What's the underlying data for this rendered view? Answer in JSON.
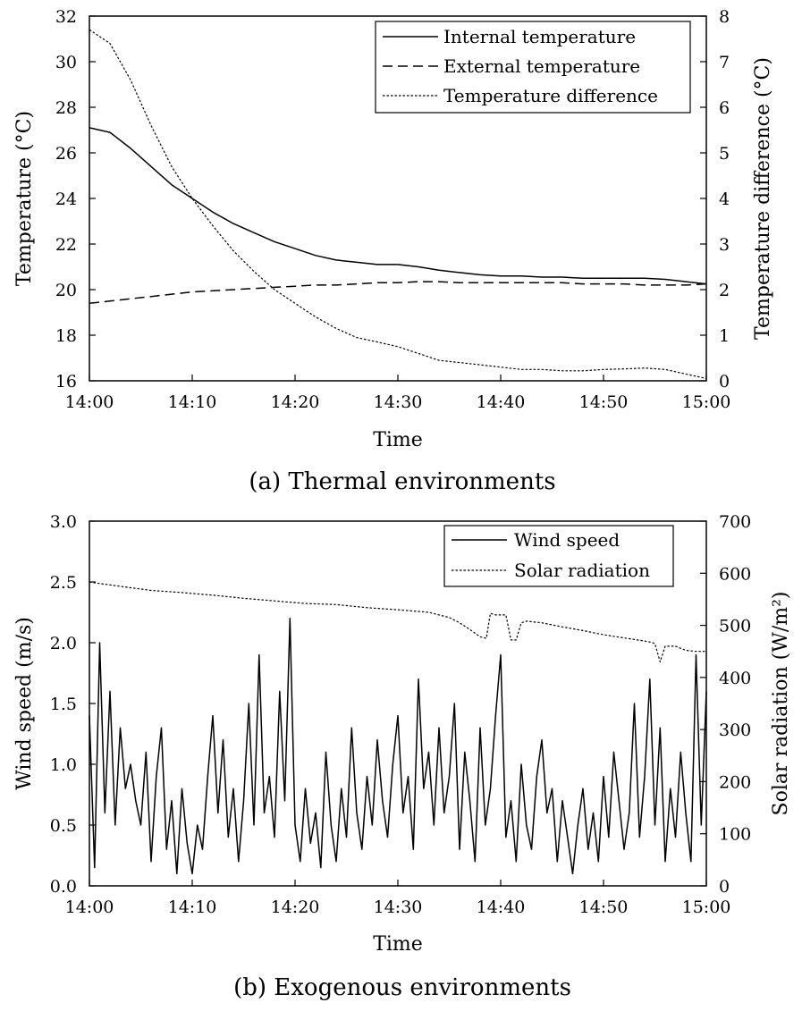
{
  "chart_data": [
    {
      "type": "line",
      "caption": "(a) Thermal environments",
      "xlabel": "Time",
      "ylabel": "Temperature (°C)",
      "y2label": "Temperature difference (°C)",
      "x_ticks": [
        "14:00",
        "14:10",
        "14:20",
        "14:30",
        "14:40",
        "14:50",
        "15:00"
      ],
      "xlim": [
        0,
        60
      ],
      "ylim": [
        16,
        32
      ],
      "y_ticks": [
        16,
        18,
        20,
        22,
        24,
        26,
        28,
        30,
        32
      ],
      "y2lim": [
        0,
        8
      ],
      "y2_ticks": [
        0,
        1,
        2,
        3,
        4,
        5,
        6,
        7,
        8
      ],
      "grid": false,
      "legend_position": "top-right",
      "x": [
        0,
        2,
        4,
        6,
        8,
        10,
        12,
        14,
        16,
        18,
        20,
        22,
        24,
        26,
        28,
        30,
        32,
        34,
        36,
        38,
        40,
        42,
        44,
        46,
        48,
        50,
        52,
        54,
        56,
        58,
        60
      ],
      "series": [
        {
          "name": "Internal temperature",
          "axis": "left",
          "style": "solid",
          "values": [
            27.1,
            26.9,
            26.2,
            25.4,
            24.6,
            24.0,
            23.4,
            22.9,
            22.5,
            22.1,
            21.8,
            21.5,
            21.3,
            21.2,
            21.1,
            21.1,
            21.0,
            20.85,
            20.75,
            20.65,
            20.6,
            20.6,
            20.55,
            20.55,
            20.5,
            20.5,
            20.5,
            20.5,
            20.45,
            20.35,
            20.25
          ]
        },
        {
          "name": "External temperature",
          "axis": "left",
          "style": "dashed",
          "values": [
            19.4,
            19.5,
            19.6,
            19.7,
            19.8,
            19.9,
            19.95,
            20.0,
            20.05,
            20.1,
            20.15,
            20.2,
            20.2,
            20.25,
            20.3,
            20.3,
            20.35,
            20.35,
            20.3,
            20.3,
            20.3,
            20.3,
            20.3,
            20.3,
            20.25,
            20.25,
            20.25,
            20.2,
            20.2,
            20.2,
            20.25
          ]
        },
        {
          "name": "Temperature difference",
          "axis": "right",
          "style": "dotted",
          "values": [
            7.7,
            7.4,
            6.6,
            5.6,
            4.7,
            4.0,
            3.4,
            2.85,
            2.4,
            2.0,
            1.7,
            1.4,
            1.15,
            0.95,
            0.85,
            0.75,
            0.6,
            0.45,
            0.4,
            0.35,
            0.3,
            0.25,
            0.25,
            0.22,
            0.22,
            0.25,
            0.26,
            0.28,
            0.25,
            0.15,
            0.05
          ]
        }
      ]
    },
    {
      "type": "line",
      "caption": "(b) Exogenous environments",
      "xlabel": "Time",
      "ylabel": "Wind speed (m/s)",
      "y2label": "Solar radiation (W/m²)",
      "x_ticks": [
        "14:00",
        "14:10",
        "14:20",
        "14:30",
        "14:40",
        "14:50",
        "15:00"
      ],
      "xlim": [
        0,
        60
      ],
      "ylim": [
        0,
        3
      ],
      "y_ticks": [
        "0.0",
        "0.5",
        "1.0",
        "1.5",
        "2.0",
        "2.5",
        "3.0"
      ],
      "y2lim": [
        0,
        700
      ],
      "y2_ticks": [
        0,
        100,
        200,
        300,
        400,
        500,
        600,
        700
      ],
      "grid": false,
      "legend_position": "top-right",
      "series": [
        {
          "name": "Wind speed",
          "axis": "left",
          "style": "solid",
          "x": [
            0,
            0.5,
            1,
            1.5,
            2,
            2.5,
            3,
            3.5,
            4,
            4.5,
            5,
            5.5,
            6,
            6.5,
            7,
            7.5,
            8,
            8.5,
            9,
            9.5,
            10,
            10.5,
            11,
            11.5,
            12,
            12.5,
            13,
            13.5,
            14,
            14.5,
            15,
            15.5,
            16,
            16.5,
            17,
            17.5,
            18,
            18.5,
            19,
            19.5,
            20,
            20.5,
            21,
            21.5,
            22,
            22.5,
            23,
            23.5,
            24,
            24.5,
            25,
            25.5,
            26,
            26.5,
            27,
            27.5,
            28,
            28.5,
            29,
            29.5,
            30,
            30.5,
            31,
            31.5,
            32,
            32.5,
            33,
            33.5,
            34,
            34.5,
            35,
            35.5,
            36,
            36.5,
            37,
            37.5,
            38,
            38.5,
            39,
            39.5,
            40,
            40.5,
            41,
            41.5,
            42,
            42.5,
            43,
            43.5,
            44,
            44.5,
            45,
            45.5,
            46,
            46.5,
            47,
            47.5,
            48,
            48.5,
            49,
            49.5,
            50,
            50.5,
            51,
            51.5,
            52,
            52.5,
            53,
            53.5,
            54,
            54.5,
            55,
            55.5,
            56,
            56.5,
            57,
            57.5,
            58,
            58.5,
            59,
            59.5,
            60
          ],
          "values": [
            1.4,
            0.15,
            2.0,
            0.6,
            1.6,
            0.5,
            1.3,
            0.8,
            1.0,
            0.7,
            0.5,
            1.1,
            0.2,
            0.9,
            1.3,
            0.3,
            0.7,
            0.1,
            0.8,
            0.35,
            0.1,
            0.5,
            0.3,
            0.9,
            1.4,
            0.6,
            1.2,
            0.4,
            0.8,
            0.2,
            0.7,
            1.5,
            0.5,
            1.9,
            0.6,
            0.9,
            0.4,
            1.6,
            0.7,
            2.2,
            0.5,
            0.2,
            0.8,
            0.35,
            0.6,
            0.15,
            1.1,
            0.5,
            0.2,
            0.8,
            0.4,
            1.3,
            0.6,
            0.3,
            0.9,
            0.5,
            1.2,
            0.7,
            0.4,
            1.0,
            1.4,
            0.6,
            0.9,
            0.3,
            1.7,
            0.8,
            1.1,
            0.5,
            1.3,
            0.6,
            0.9,
            1.5,
            0.3,
            1.1,
            0.7,
            0.2,
            1.3,
            0.5,
            0.8,
            1.4,
            1.9,
            0.4,
            0.7,
            0.2,
            1.0,
            0.5,
            0.3,
            0.9,
            1.2,
            0.6,
            0.8,
            0.2,
            0.7,
            0.4,
            0.1,
            0.5,
            0.8,
            0.3,
            0.6,
            0.2,
            0.9,
            0.4,
            1.1,
            0.7,
            0.3,
            0.6,
            1.5,
            0.4,
            0.9,
            1.7,
            0.5,
            1.3,
            0.2,
            0.8,
            0.4,
            1.1,
            0.6,
            0.2,
            1.9,
            0.5,
            1.6
          ],
          "y_unit": "m/s"
        },
        {
          "name": "Solar radiation",
          "axis": "right",
          "style": "dotted",
          "x": [
            0,
            3,
            6,
            9,
            12,
            15,
            18,
            21,
            24,
            27,
            30,
            33,
            35,
            36,
            37,
            38,
            38.6,
            39,
            39.5,
            40.5,
            41,
            41.5,
            42,
            42.5,
            44,
            46,
            48,
            50,
            52,
            54,
            54.5,
            55,
            55.5,
            56,
            57,
            58,
            59,
            60
          ],
          "values": [
            583,
            575,
            567,
            563,
            558,
            552,
            547,
            542,
            540,
            534,
            530,
            525,
            515,
            505,
            492,
            478,
            475,
            523,
            520,
            520,
            472,
            472,
            505,
            508,
            505,
            497,
            490,
            482,
            476,
            470,
            468,
            465,
            430,
            460,
            460,
            452,
            450,
            450
          ]
        }
      ]
    }
  ]
}
